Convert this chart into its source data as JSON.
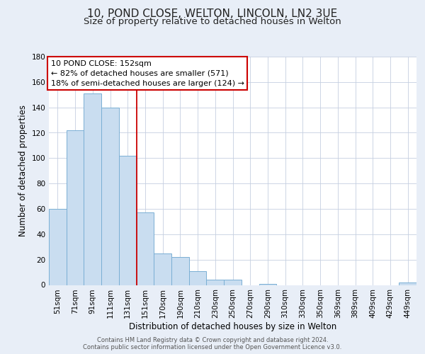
{
  "title": "10, POND CLOSE, WELTON, LINCOLN, LN2 3UE",
  "subtitle": "Size of property relative to detached houses in Welton",
  "xlabel": "Distribution of detached houses by size in Welton",
  "ylabel": "Number of detached properties",
  "footer_line1": "Contains HM Land Registry data © Crown copyright and database right 2024.",
  "footer_line2": "Contains public sector information licensed under the Open Government Licence v3.0.",
  "bar_labels": [
    "51sqm",
    "71sqm",
    "91sqm",
    "111sqm",
    "131sqm",
    "151sqm",
    "170sqm",
    "190sqm",
    "210sqm",
    "230sqm",
    "250sqm",
    "270sqm",
    "290sqm",
    "310sqm",
    "330sqm",
    "350sqm",
    "369sqm",
    "389sqm",
    "409sqm",
    "429sqm",
    "449sqm"
  ],
  "bar_values": [
    60,
    122,
    151,
    140,
    102,
    57,
    25,
    22,
    11,
    4,
    4,
    0,
    1,
    0,
    0,
    0,
    0,
    0,
    0,
    0,
    2
  ],
  "bar_color": "#c9ddf0",
  "bar_edge_color": "#7aafd4",
  "vline_color": "#cc0000",
  "annotation_title": "10 POND CLOSE: 152sqm",
  "annotation_line1": "← 82% of detached houses are smaller (571)",
  "annotation_line2": "18% of semi-detached houses are larger (124) →",
  "annotation_box_color": "#ffffff",
  "annotation_box_edge_color": "#cc0000",
  "ylim": [
    0,
    180
  ],
  "yticks": [
    0,
    20,
    40,
    60,
    80,
    100,
    120,
    140,
    160,
    180
  ],
  "background_color": "#e8eef7",
  "plot_background": "#ffffff",
  "grid_color": "#c5cfe0",
  "title_fontsize": 11,
  "subtitle_fontsize": 9.5,
  "xlabel_fontsize": 8.5,
  "ylabel_fontsize": 8.5,
  "tick_fontsize": 7.5,
  "footer_fontsize": 6,
  "annotation_fontsize": 8
}
